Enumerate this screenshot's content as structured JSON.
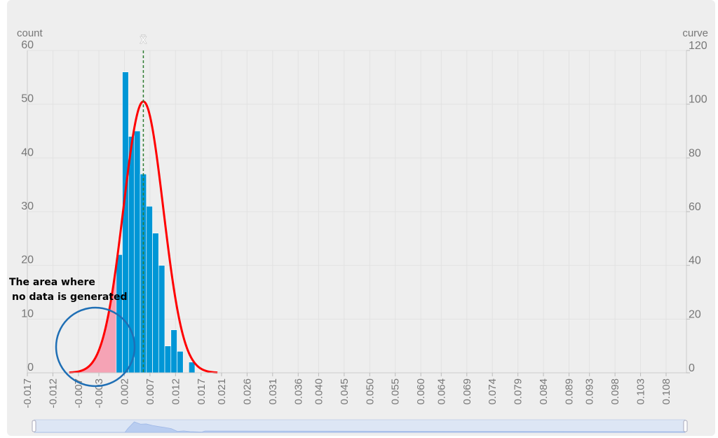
{
  "chart_data": {
    "type": "bar",
    "left_axis_label": "count",
    "right_axis_label": "curve",
    "mean_label": "x̄",
    "y_left_ticks": [
      "0",
      "10",
      "20",
      "30",
      "40",
      "50",
      "60"
    ],
    "y_right_ticks": [
      "0",
      "20",
      "40",
      "60",
      "80",
      "100",
      "120"
    ],
    "ylim_left": [
      0,
      60
    ],
    "ylim_right": [
      0,
      120
    ],
    "x_ticks": [
      "-0.017",
      "-0.012",
      "-0.007",
      "-0.003",
      "0.002",
      "0.007",
      "0.012",
      "0.017",
      "0.021",
      "0.026",
      "0.031",
      "0.036",
      "0.040",
      "0.045",
      "0.050",
      "0.055",
      "0.060",
      "0.064",
      "0.069",
      "0.074",
      "0.079",
      "0.084",
      "0.089",
      "0.093",
      "0.098",
      "0.103",
      "0.108"
    ],
    "x_tick_values": [
      -0.017,
      -0.012,
      -0.007,
      -0.003,
      0.002,
      0.007,
      0.012,
      0.017,
      0.021,
      0.026,
      0.031,
      0.036,
      0.04,
      0.045,
      0.05,
      0.055,
      0.06,
      0.064,
      0.069,
      0.074,
      0.079,
      0.084,
      0.089,
      0.093,
      0.098,
      0.103,
      0.108
    ],
    "histogram": {
      "bin_width": 0.00119,
      "bins": [
        {
          "start": 0.0004,
          "count": 22
        },
        {
          "start": 0.0016,
          "count": 56
        },
        {
          "start": 0.0028,
          "count": 44
        },
        {
          "start": 0.0039,
          "count": 45
        },
        {
          "start": 0.0051,
          "count": 37
        },
        {
          "start": 0.0063,
          "count": 31
        },
        {
          "start": 0.0075,
          "count": 26
        },
        {
          "start": 0.0087,
          "count": 20
        },
        {
          "start": 0.0099,
          "count": 5
        },
        {
          "start": 0.0111,
          "count": 8
        },
        {
          "start": 0.0123,
          "count": 4
        },
        {
          "start": 0.0146,
          "count": 2
        }
      ]
    },
    "normal_curve": {
      "mean": 0.0057,
      "std": 0.0039,
      "peak": 101,
      "x_range": [
        -0.0088,
        0.0202
      ]
    },
    "mean_value": 0.0057,
    "shaded_region_end": 0.0004,
    "annotation": {
      "line1": "The area where",
      "line2": "no data is generated"
    },
    "colors": {
      "bar": "#0096d6",
      "bar_edge": "#ffffff",
      "curve": "#ff0000",
      "shade": "#f5a3b5",
      "mean_line": "#2e7d32",
      "circle": "#1f6fb5",
      "axis_text": "#777777",
      "grid": "#e2e2e2",
      "slider_fill": "#dde6f5",
      "slider_area": "#b9cdf0",
      "slider_border": "#c6d2e8"
    },
    "grid": true
  }
}
